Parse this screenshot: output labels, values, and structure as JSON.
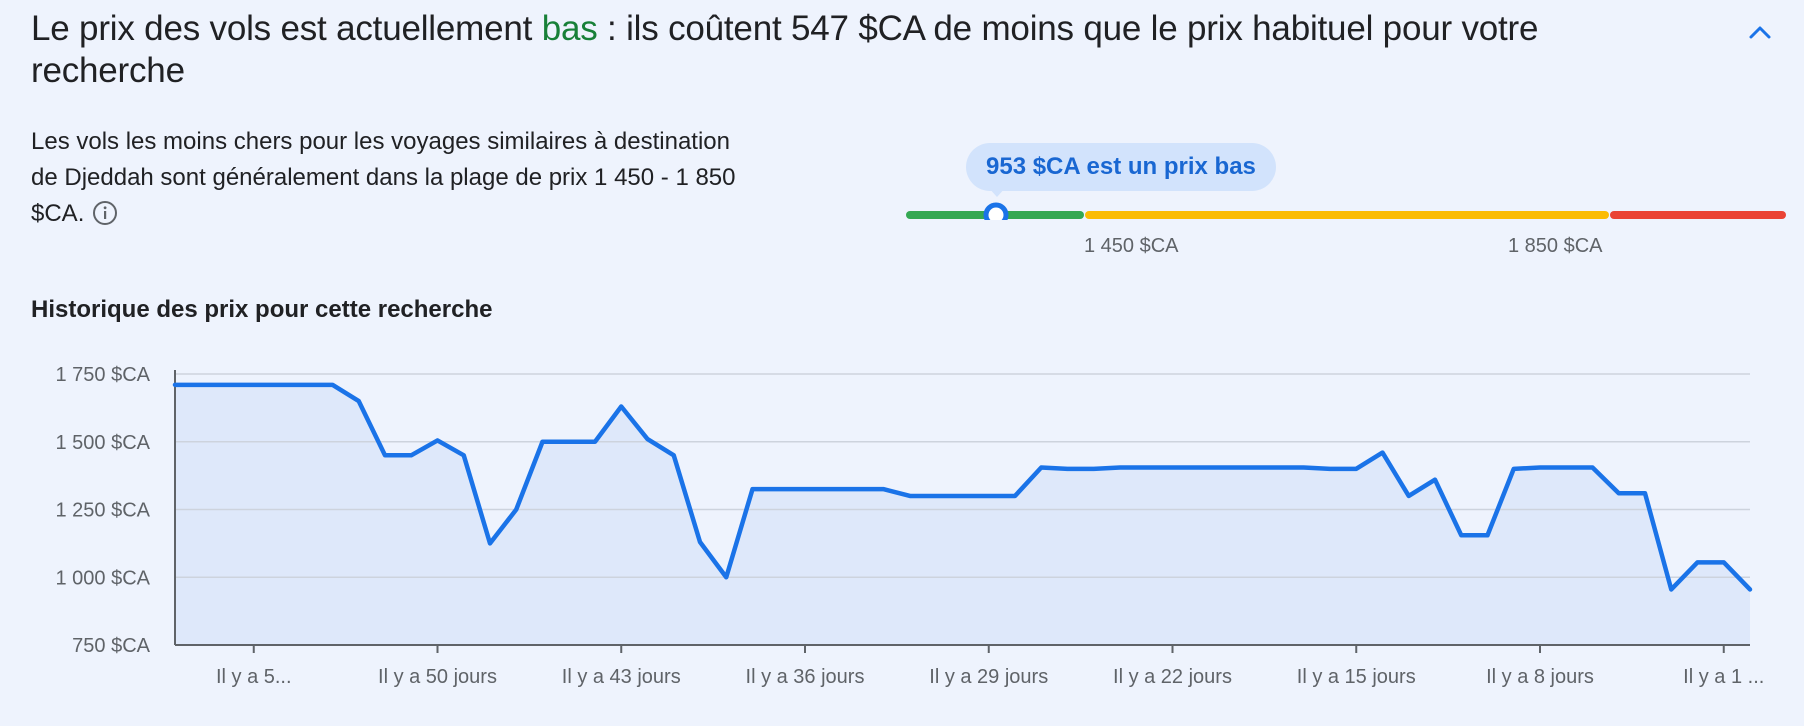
{
  "header": {
    "title_before": "Le prix des vols est actuellement ",
    "title_level": "bas",
    "title_after": " : ils coûtent 547 $CA de moins que le prix habituel pour votre recherche"
  },
  "summary": {
    "text": "Les vols les moins chers pour les voyages similaires à destination de Djeddah sont généralement dans la plage de prix 1 450 - 1 850 $CA."
  },
  "gauge": {
    "bubble_label": "953 $CA est un prix bas",
    "current_price": 953,
    "low_threshold_label": "1 450 $CA",
    "high_threshold_label": "1 850 $CA",
    "low_threshold": 1450,
    "high_threshold": 1850,
    "colors": {
      "low": "#34a853",
      "typical": "#fbbc04",
      "high": "#ea4335",
      "marker": "#1a73e8"
    }
  },
  "history": {
    "title": "Historique des prix pour cette recherche"
  },
  "chart_data": {
    "type": "area",
    "y_ticks": [
      750,
      1000,
      1250,
      1500,
      1750
    ],
    "y_tick_labels": [
      "750 $CA",
      "1 000 $CA",
      "1 250 $CA",
      "1 500 $CA",
      "1 750 $CA"
    ],
    "ylim": [
      750,
      1750
    ],
    "x_tick_labels": [
      "Il y a 5...",
      "Il y a 50 jours",
      "Il y a 43 jours",
      "Il y a 36 jours",
      "Il y a 29 jours",
      "Il y a 22 jours",
      "Il y a 15 jours",
      "Il y a 8 jours",
      "Il y a 1 ..."
    ],
    "x_tick_days_ago": [
      57,
      50,
      43,
      36,
      29,
      22,
      15,
      8,
      1
    ],
    "xlim_days_ago": [
      60,
      0
    ],
    "series": [
      {
        "days_ago": [
          60,
          59,
          58,
          57,
          56,
          55,
          54,
          53,
          52,
          51,
          50,
          49,
          48,
          47,
          46,
          45,
          44,
          43,
          42,
          41,
          40,
          39,
          38,
          37,
          36,
          35,
          34,
          33,
          32,
          31,
          30,
          29,
          28,
          27,
          26,
          25,
          24,
          23,
          22,
          21,
          20,
          19,
          18,
          17,
          16,
          15,
          14,
          13,
          12,
          11,
          10,
          9,
          8,
          7,
          6,
          5,
          4,
          3,
          2,
          1,
          0
        ],
        "values": [
          1710,
          1710,
          1710,
          1710,
          1710,
          1710,
          1710,
          1650,
          1450,
          1450,
          1505,
          1450,
          1125,
          1250,
          1500,
          1500,
          1500,
          1630,
          1510,
          1450,
          1130,
          1000,
          1325,
          1325,
          1325,
          1325,
          1325,
          1325,
          1300,
          1300,
          1300,
          1300,
          1300,
          1405,
          1400,
          1400,
          1405,
          1405,
          1405,
          1405,
          1405,
          1405,
          1405,
          1405,
          1400,
          1400,
          1460,
          1300,
          1360,
          1155,
          1155,
          1400,
          1405,
          1405,
          1405,
          1310,
          1310,
          955,
          1055,
          1055,
          955
        ],
        "color": "#1a73e8",
        "fill": "#dee8fa"
      }
    ],
    "grid": true
  }
}
